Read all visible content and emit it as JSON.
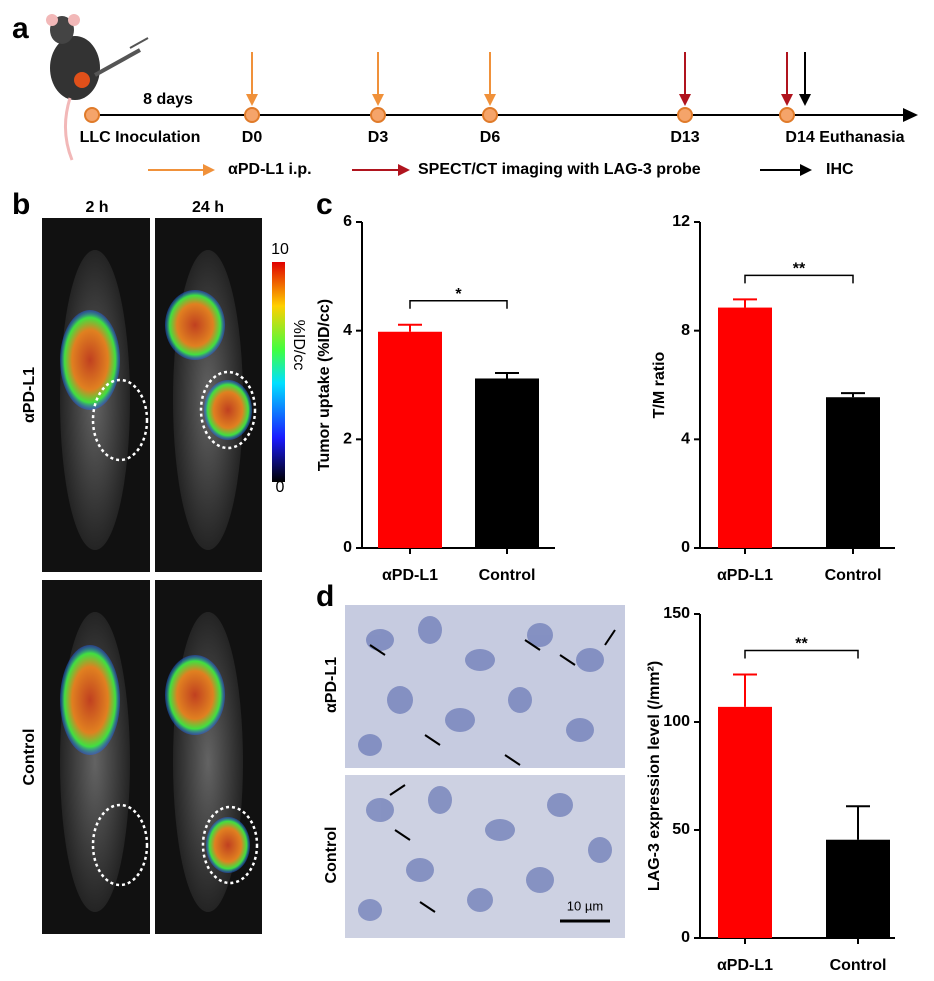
{
  "panels": [
    "a",
    "b",
    "c",
    "d"
  ],
  "timeline": {
    "interval_label": "8 days",
    "points": [
      {
        "label": "LLC Inoculation",
        "arrows": []
      },
      {
        "label": "D0",
        "arrows": [
          "#f0913a"
        ]
      },
      {
        "label": "D3",
        "arrows": [
          "#f0913a"
        ]
      },
      {
        "label": "D6",
        "arrows": [
          "#f0913a"
        ]
      },
      {
        "label": "D13",
        "arrows": [
          "#b0141e"
        ]
      },
      {
        "label": "D14 Euthanasia",
        "arrows": [
          "#b0141e",
          "#000000"
        ]
      }
    ],
    "legend": [
      {
        "label": "αPD-L1 i.p.",
        "color": "#f0913a"
      },
      {
        "label": "SPECT/CT imaging with LAG-3 probe",
        "color": "#b0141e"
      },
      {
        "label": "IHC",
        "color": "#000000"
      }
    ]
  },
  "panel_b": {
    "columns": [
      "2 h",
      "24 h"
    ],
    "rows": [
      "αPD-L1",
      "Control"
    ],
    "colorbar": {
      "max": 10,
      "min": 0,
      "label": "%ID/cc"
    }
  },
  "panel_d": {
    "rows": [
      "αPD-L1",
      "Control"
    ],
    "scale_bar": "10 µm"
  },
  "chart_data": [
    {
      "type": "bar",
      "ylabel": "Tumor uptake (%ID/cc)",
      "categories": [
        "αPD-L1",
        "Control"
      ],
      "values": [
        3.98,
        3.12
      ],
      "errors": [
        0.13,
        0.1
      ],
      "colors": [
        "#ff0000",
        "#000000"
      ],
      "ylim": [
        0,
        6
      ],
      "yticks": [
        0,
        2,
        4,
        6
      ],
      "significance": "*"
    },
    {
      "type": "bar",
      "ylabel": "T/M ratio",
      "categories": [
        "αPD-L1",
        "Control"
      ],
      "values": [
        8.85,
        5.55
      ],
      "errors": [
        0.3,
        0.15
      ],
      "colors": [
        "#ff0000",
        "#000000"
      ],
      "ylim": [
        0,
        12
      ],
      "yticks": [
        0,
        4,
        8,
        12
      ],
      "significance": "**"
    },
    {
      "type": "bar",
      "ylabel": "LAG-3 expression level (/mm²)",
      "categories": [
        "αPD-L1",
        "Control"
      ],
      "values": [
        107,
        45.5
      ],
      "errors": [
        15,
        15.5
      ],
      "colors": [
        "#ff0000",
        "#000000"
      ],
      "ylim": [
        0,
        150
      ],
      "yticks": [
        0,
        50,
        100,
        150
      ],
      "significance": "**"
    }
  ]
}
